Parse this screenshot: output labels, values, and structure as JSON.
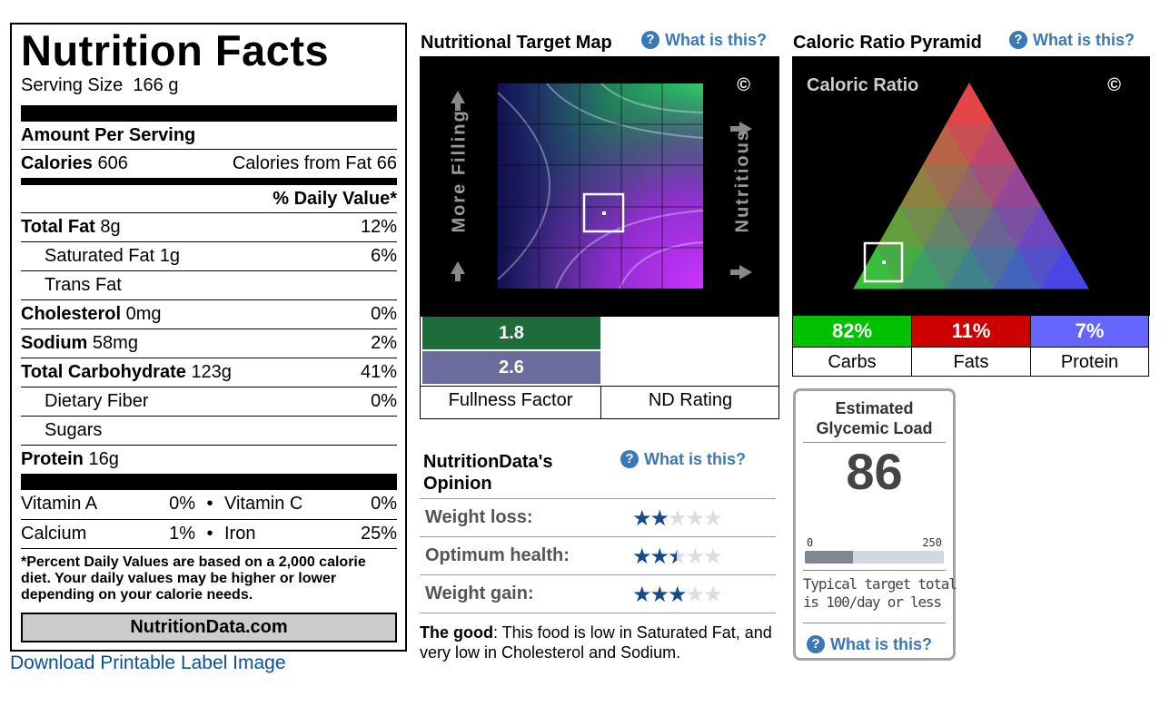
{
  "label": {
    "title": "Nutrition Facts",
    "serving_label": "Serving Size",
    "serving_value": "166 g",
    "amount_per_serving": "Amount Per Serving",
    "calories_label": "Calories",
    "calories_value": "606",
    "calories_from_fat": "Calories from Fat 66",
    "daily_value_heading": "% Daily Value*",
    "rows": [
      {
        "label": "Total Fat",
        "amount": "8g",
        "dv": "12%",
        "bold": true,
        "indent": false
      },
      {
        "label": "Saturated Fat",
        "amount": "1g",
        "dv": "6%",
        "bold": false,
        "indent": true
      },
      {
        "label": "Trans Fat",
        "amount": "",
        "dv": "",
        "bold": false,
        "indent": true
      },
      {
        "label": "Cholesterol",
        "amount": "0mg",
        "dv": "0%",
        "bold": true,
        "indent": false
      },
      {
        "label": "Sodium",
        "amount": "58mg",
        "dv": "2%",
        "bold": true,
        "indent": false
      },
      {
        "label": "Total Carbohydrate",
        "amount": "123g",
        "dv": "41%",
        "bold": true,
        "indent": false
      },
      {
        "label": "Dietary Fiber",
        "amount": "",
        "dv": "0%",
        "bold": false,
        "indent": true
      },
      {
        "label": "Sugars",
        "amount": "",
        "dv": "",
        "bold": false,
        "indent": true
      },
      {
        "label": "Protein",
        "amount": "16g",
        "dv": "",
        "bold": true,
        "indent": false
      }
    ],
    "vitamins": [
      {
        "a_name": "Vitamin A",
        "a_dv": "0%",
        "b_name": "Vitamin C",
        "b_dv": "0%"
      },
      {
        "a_name": "Calcium",
        "a_dv": "1%",
        "b_name": "Iron",
        "b_dv": "25%"
      }
    ],
    "bullet": "•",
    "footnote": "*Percent Daily Values are based on a 2,000 calorie diet. Your daily values may be higher or lower depending on your calorie needs.",
    "brand": "NutritionData.com",
    "download_link": "Download Printable Label Image"
  },
  "target_map": {
    "title": "Nutritional Target Map",
    "what_link": "What is this?",
    "copyright": "©",
    "left_axis": "More Filling",
    "right_axis": "Nutritious",
    "fullness_value": "1.8",
    "nd_value": "2.6",
    "fullness_label": "Fullness Factor",
    "nd_label": "ND Rating",
    "fullness_color": "#1e6b3c",
    "nd_color": "#6b6b9e"
  },
  "opinion": {
    "title_line1": "NutritionData's",
    "title_line2": "Opinion",
    "what_link": "What is this?",
    "rows": [
      {
        "label": "Weight loss:",
        "stars": 2
      },
      {
        "label": "Optimum health:",
        "stars": 2.5
      },
      {
        "label": "Weight gain:",
        "stars": 3
      }
    ],
    "max_stars": 5,
    "good_label": "The good",
    "good_text": ": This food is low in Saturated Fat, and very low in Cholesterol and Sodium."
  },
  "pyramid": {
    "title": "Caloric Ratio Pyramid",
    "what_link": "What is this?",
    "inner_title": "Caloric Ratio",
    "copyright": "©",
    "cells": [
      {
        "pct": "82%",
        "name": "Carbs",
        "color": "#00c000"
      },
      {
        "pct": "11%",
        "name": "Fats",
        "color": "#cc0000"
      },
      {
        "pct": "7%",
        "name": "Protein",
        "color": "#6666ff"
      }
    ]
  },
  "glycemic": {
    "title_line1": "Estimated",
    "title_line2": "Glycemic Load",
    "value": "86",
    "scale_min": "0",
    "scale_max": "250",
    "fraction": 0.344,
    "note_line1": "Typical target total",
    "note_line2": "is 100/day or less",
    "what_link": "What is this?"
  }
}
